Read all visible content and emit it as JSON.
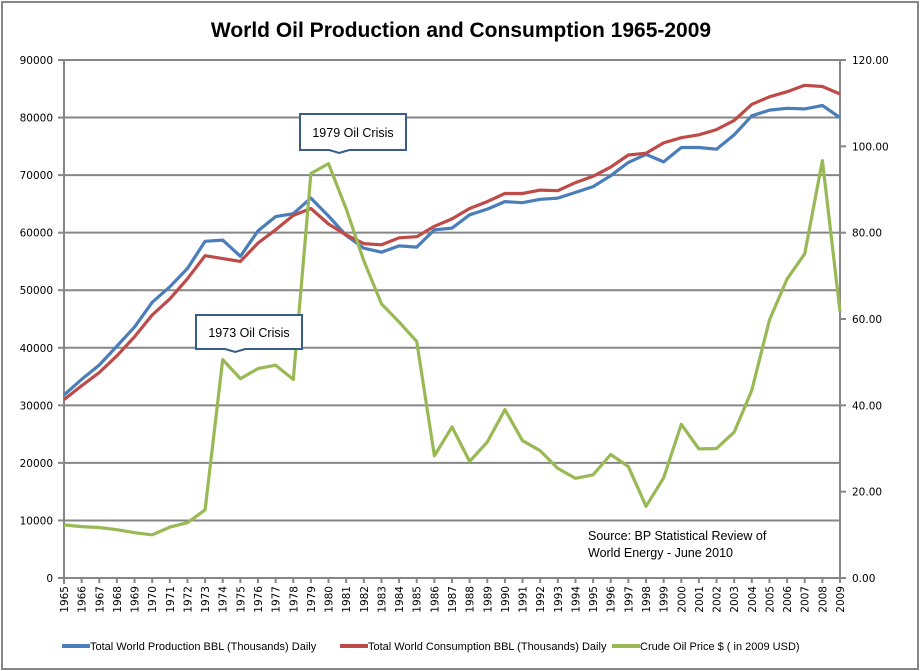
{
  "chart_data": {
    "type": "line",
    "title": "World Oil Production and Consumption 1965-2009",
    "xlabel": "",
    "ylabel": "",
    "y2label": "",
    "x": [
      1965,
      1966,
      1967,
      1968,
      1969,
      1970,
      1971,
      1972,
      1973,
      1974,
      1975,
      1976,
      1977,
      1978,
      1979,
      1980,
      1981,
      1982,
      1983,
      1984,
      1985,
      1986,
      1987,
      1988,
      1989,
      1990,
      1991,
      1992,
      1993,
      1994,
      1995,
      1996,
      1997,
      1998,
      1999,
      2000,
      2001,
      2002,
      2003,
      2004,
      2005,
      2006,
      2007,
      2008,
      2009
    ],
    "ylim": [
      0,
      90000
    ],
    "y2lim": [
      0,
      120
    ],
    "yticks": [
      "0",
      "10000",
      "20000",
      "30000",
      "40000",
      "50000",
      "60000",
      "70000",
      "80000",
      "90000"
    ],
    "y2ticks": [
      "0.00",
      "20.00",
      "40.00",
      "60.00",
      "80.00",
      "100.00",
      "120.00"
    ],
    "grid": true,
    "legend_position": "bottom",
    "series": [
      {
        "name": "Total World Production BBL (Thousands) Daily",
        "axis": "left",
        "color": "#4a7ebb",
        "values": [
          31800,
          34500,
          37000,
          40300,
          43600,
          47900,
          50600,
          53800,
          58500,
          58700,
          55900,
          60300,
          62800,
          63300,
          66000,
          62900,
          59500,
          57300,
          56600,
          57700,
          57500,
          60500,
          60800,
          63100,
          64100,
          65400,
          65200,
          65800,
          66000,
          67000,
          68000,
          69900,
          72200,
          73600,
          72300,
          74800,
          74800,
          74500,
          77000,
          80300,
          81300,
          81600,
          81500,
          82100,
          80000
        ]
      },
      {
        "name": "Total World Consumption BBL (Thousands) Daily",
        "axis": "left",
        "color": "#be4b48",
        "values": [
          31000,
          33400,
          35700,
          38600,
          41900,
          45700,
          48500,
          52000,
          56000,
          55500,
          55000,
          58200,
          60500,
          63000,
          64200,
          61500,
          59600,
          58100,
          57900,
          59100,
          59300,
          61100,
          62400,
          64200,
          65400,
          66800,
          66800,
          67400,
          67300,
          68700,
          69800,
          71400,
          73500,
          73800,
          75600,
          76500,
          77000,
          77900,
          79500,
          82300,
          83600,
          84500,
          85600,
          85400,
          84100
        ]
      },
      {
        "name": "Crude Oil Price $ ( in 2009 USD)",
        "axis": "right",
        "color": "#98b954",
        "values": [
          12.3,
          11.9,
          11.7,
          11.2,
          10.5,
          10.0,
          11.8,
          12.8,
          15.8,
          50.6,
          46.2,
          48.5,
          49.3,
          46.0,
          93.7,
          96.0,
          85.5,
          73.5,
          63.5,
          59.3,
          54.8,
          28.3,
          35.0,
          27.0,
          31.5,
          39.0,
          31.8,
          29.5,
          25.4,
          23.1,
          23.9,
          28.6,
          25.8,
          16.6,
          23.2,
          35.6,
          29.9,
          30.0,
          33.8,
          43.5,
          59.8,
          69.3,
          75.1,
          96.7,
          61.7
        ]
      }
    ],
    "annotations": [
      {
        "text": "1973  Oil Crisis",
        "year": 1974
      },
      {
        "text": "1979  Oil Crisis",
        "year": 1980
      }
    ],
    "source_note": [
      "Source:  BP Statistical Review of",
      "World Energy  - June 2010"
    ]
  }
}
